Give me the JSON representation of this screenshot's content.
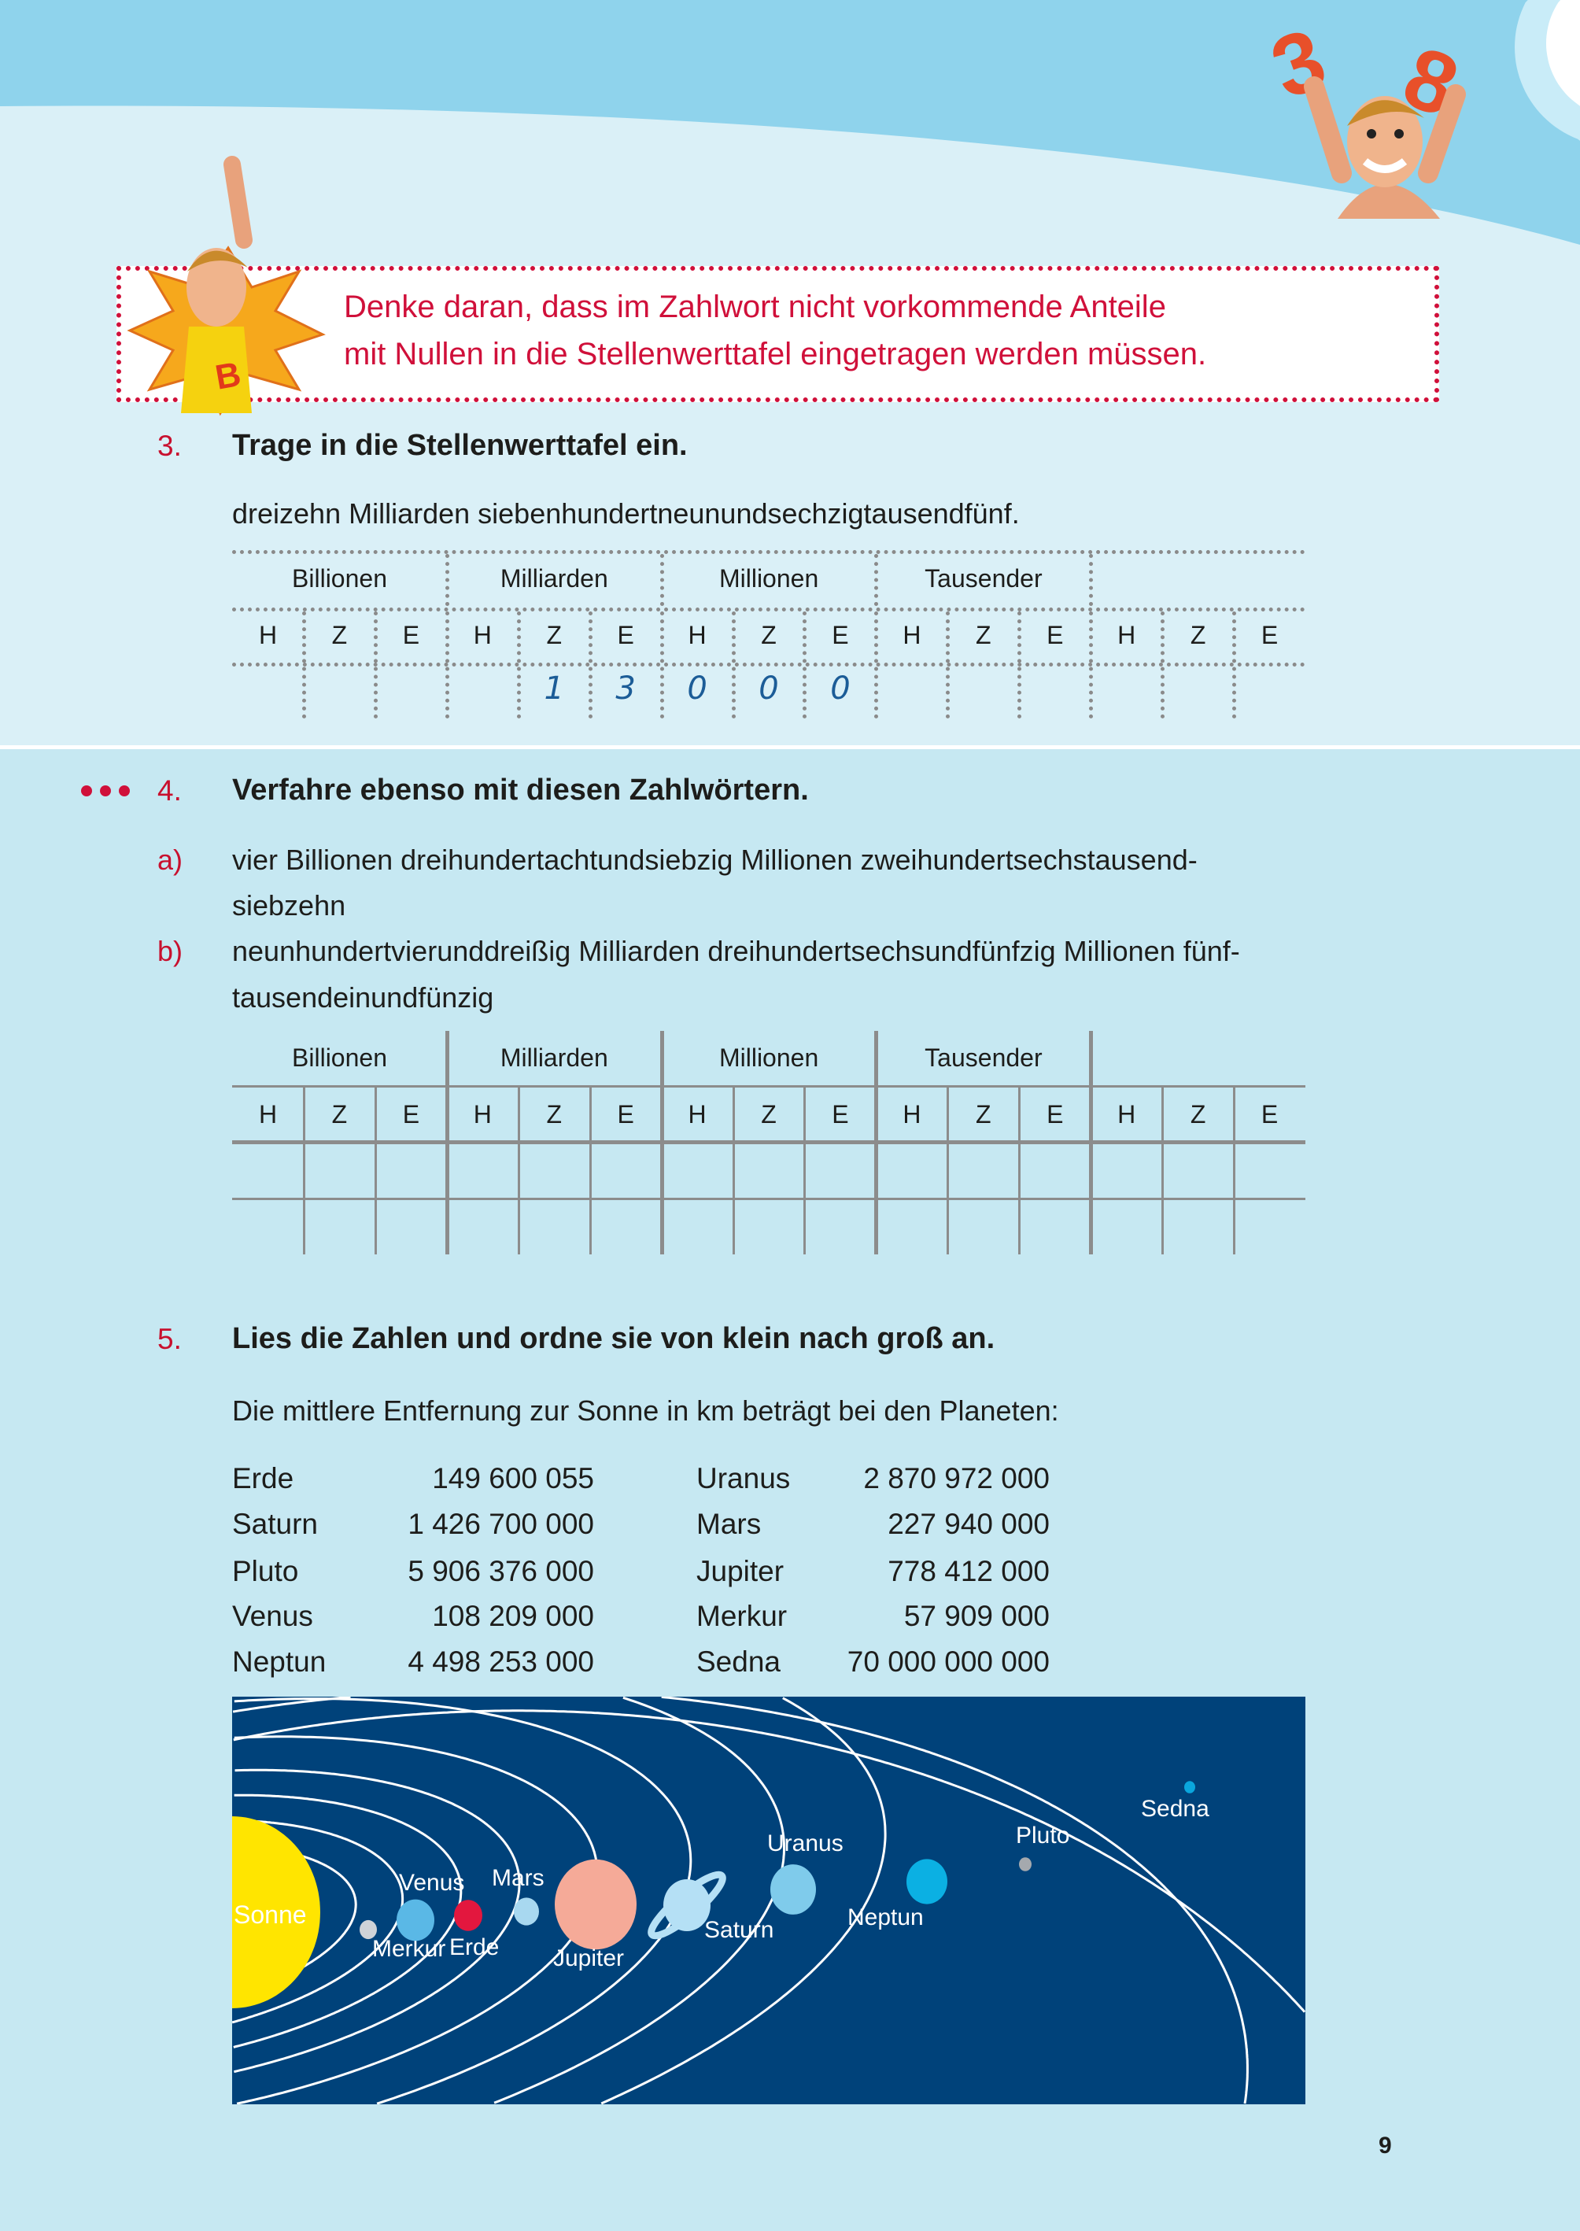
{
  "colors": {
    "sky": "#8fd3ec",
    "page_upper": "#daf0f7",
    "page_lower": "#c6e8f2",
    "accent_red": "#d0103a",
    "handwriting": "#1b5c97",
    "diagram_bg": "#00427a",
    "sun": "#ffe500"
  },
  "tip": {
    "line1": "Denke daran, dass im Zahlwort nicht vorkommende Anteile",
    "line2": "mit Nullen in die Stellenwerttafel eingetragen werden müssen."
  },
  "ex3": {
    "number": "3.",
    "title": "Trage in die Stellenwerttafel ein.",
    "prompt": "dreizehn Milliarden siebenhundertneunundsechzigtausendfünf.",
    "groups": [
      "Billionen",
      "Milliarden",
      "Millionen",
      "Tausender",
      ""
    ],
    "places": [
      "H",
      "Z",
      "E",
      "H",
      "Z",
      "E",
      "H",
      "Z",
      "E",
      "H",
      "Z",
      "E",
      "H",
      "Z",
      "E"
    ],
    "entries": [
      "",
      "",
      "",
      "",
      "1",
      "3",
      "0",
      "0",
      "0",
      "",
      "",
      "",
      "",
      "",
      ""
    ]
  },
  "ex4": {
    "number": "4.",
    "difficulty_dots": 3,
    "title": "Verfahre ebenso mit diesen Zahlwörtern.",
    "items": [
      {
        "label": "a)",
        "line1": "vier Billionen dreihundertachtundsiebzig Millionen zweihundertsechstausend-",
        "line2": "siebzehn"
      },
      {
        "label": "b)",
        "line1": "neunhundertvierunddreißig Milliarden dreihundertsechsundfünfzig Millionen fünf-",
        "line2": "tausendeinundfünzig"
      }
    ],
    "groups": [
      "Billionen",
      "Milliarden",
      "Millionen",
      "Tausender",
      ""
    ],
    "places": [
      "H",
      "Z",
      "E",
      "H",
      "Z",
      "E",
      "H",
      "Z",
      "E",
      "H",
      "Z",
      "E",
      "H",
      "Z",
      "E"
    ],
    "empty_rows": 2
  },
  "ex5": {
    "number": "5.",
    "title": "Lies die Zahlen und ordne sie von klein nach groß an.",
    "subtitle": "Die mittlere Entfernung zur Sonne in km beträgt bei den Planeten:",
    "left": [
      {
        "name": "Erde",
        "km": "149 600 055"
      },
      {
        "name": "Saturn",
        "km": "1 426 700 000"
      },
      {
        "name": "Pluto",
        "km": "5 906 376 000"
      },
      {
        "name": "Venus",
        "km": "108 209 000"
      },
      {
        "name": "Neptun",
        "km": "4 498 253 000"
      }
    ],
    "right": [
      {
        "name": "Uranus",
        "km": "2 870 972 000"
      },
      {
        "name": "Mars",
        "km": "227 940 000"
      },
      {
        "name": "Jupiter",
        "km": "778 412 000"
      },
      {
        "name": "Merkur",
        "km": "57 909 000"
      },
      {
        "name": "Sedna",
        "km": "70 000 000 000"
      }
    ]
  },
  "diagram": {
    "sun": "Sonne",
    "bodies": [
      {
        "name": "Merkur",
        "color": "#cfd3d8"
      },
      {
        "name": "Venus",
        "color": "#5ab8e6"
      },
      {
        "name": "Erde",
        "color": "#e3173e"
      },
      {
        "name": "Mars",
        "color": "#a8d8f0"
      },
      {
        "name": "Jupiter",
        "color": "#f5aa98"
      },
      {
        "name": "Saturn",
        "color": "#b5e0f5"
      },
      {
        "name": "Uranus",
        "color": "#7fcbeb"
      },
      {
        "name": "Neptun",
        "color": "#0bb0e3"
      },
      {
        "name": "Pluto",
        "color": "#a5a9ae"
      },
      {
        "name": "Sedna",
        "color": "#0aa6dd"
      }
    ]
  },
  "page_number": "9"
}
